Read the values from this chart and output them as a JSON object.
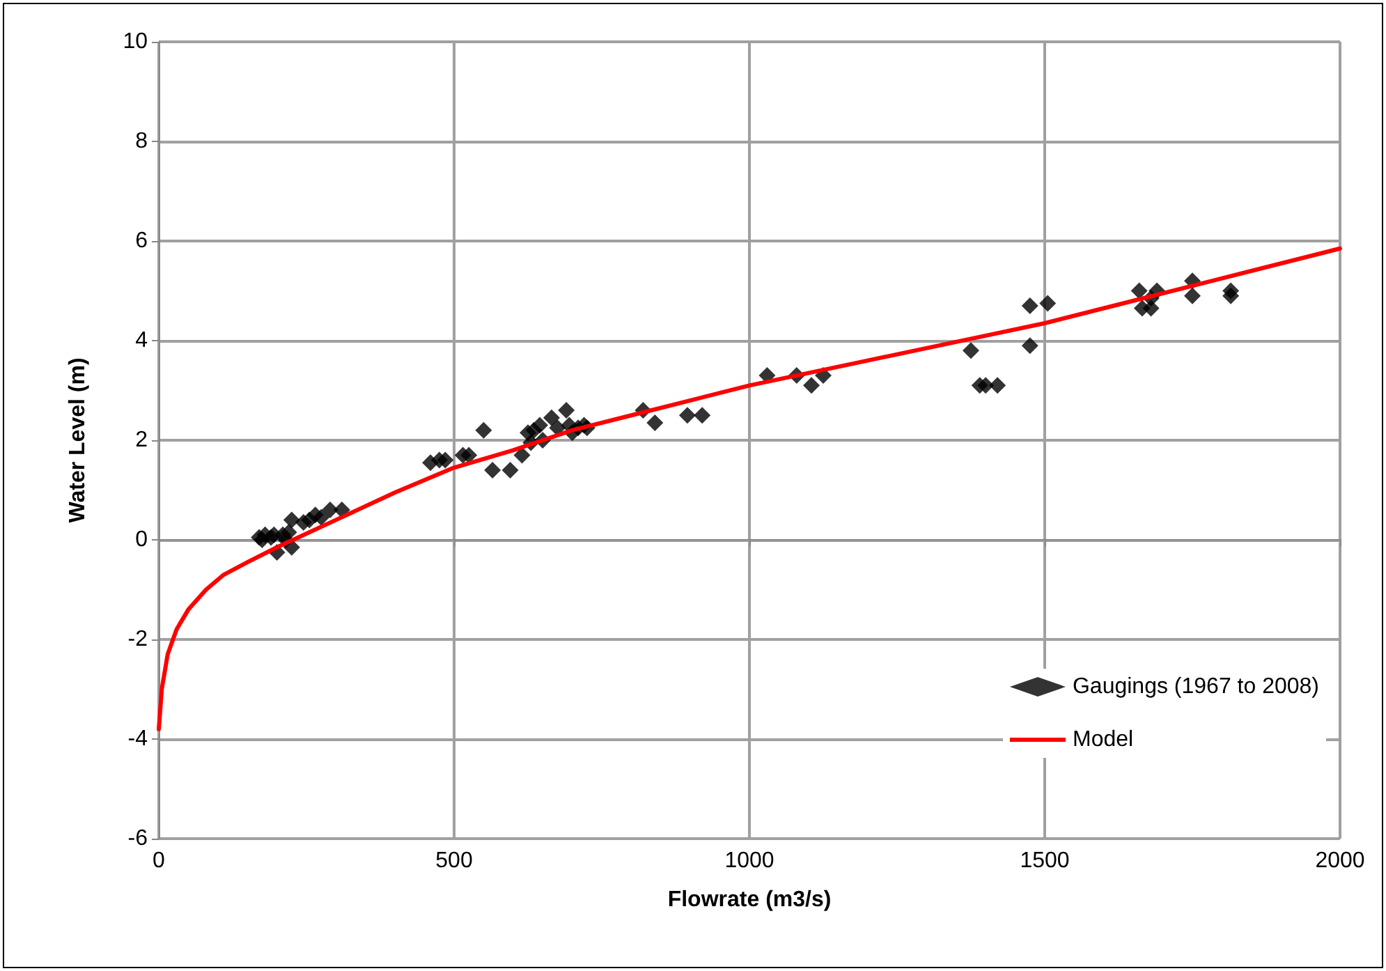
{
  "chart_data": {
    "type": "scatter",
    "xlabel": "Flowrate (m3/s)",
    "ylabel": "Water Level (m)",
    "xlim": [
      0,
      2000
    ],
    "xticks": [
      0,
      500,
      1000,
      1500,
      2000
    ],
    "ylim": [
      -6,
      10
    ],
    "yticks": [
      -6,
      -4,
      -2,
      0,
      2,
      4,
      6,
      8,
      10
    ],
    "grid": true,
    "legend": "bottom right",
    "series": [
      {
        "name": "Gaugings (1967 to 2008)",
        "marker": "diamond",
        "color": "#000000",
        "x": [
          170,
          175,
          180,
          190,
          195,
          200,
          210,
          215,
          220,
          225,
          225,
          245,
          255,
          265,
          275,
          290,
          310,
          460,
          475,
          485,
          515,
          525,
          550,
          565,
          595,
          615,
          625,
          630,
          635,
          645,
          650,
          665,
          675,
          690,
          695,
          700,
          710,
          720,
          725,
          820,
          840,
          895,
          920,
          1030,
          1080,
          1105,
          1125,
          1375,
          1390,
          1400,
          1420,
          1475,
          1475,
          1505,
          1660,
          1665,
          1680,
          1680,
          1690,
          1750,
          1750,
          1815,
          1815
        ],
        "values": [
          0.05,
          0,
          0.1,
          0.05,
          0.1,
          -0.25,
          0.1,
          0,
          0.15,
          -0.15,
          0.4,
          0.35,
          0.4,
          0.5,
          0.45,
          0.6,
          0.6,
          1.55,
          1.6,
          1.6,
          1.7,
          1.7,
          2.2,
          1.4,
          1.4,
          1.7,
          2.15,
          1.95,
          2.2,
          2.3,
          2.0,
          2.45,
          2.25,
          2.6,
          2.3,
          2.15,
          2.25,
          2.3,
          2.25,
          2.6,
          2.35,
          2.5,
          2.5,
          3.3,
          3.3,
          3.1,
          3.3,
          3.8,
          3.1,
          3.1,
          3.1,
          3.9,
          4.7,
          4.75,
          5.0,
          4.65,
          4.85,
          4.65,
          5.0,
          5.2,
          4.9,
          5.0,
          4.9
        ]
      },
      {
        "name": "Model",
        "type": "line",
        "marker": "none",
        "line_style": "solid",
        "color": "#ff0000",
        "x": [
          0,
          5,
          15,
          30,
          50,
          80,
          110,
          150,
          200,
          300,
          400,
          500,
          600,
          700,
          800,
          900,
          1000,
          1200,
          1400,
          1500,
          1600,
          1800,
          2000
        ],
        "values": [
          -3.8,
          -3,
          -2.3,
          -1.8,
          -1.4,
          -1.0,
          -0.7,
          -0.45,
          -0.15,
          0.4,
          0.95,
          1.45,
          1.8,
          2.2,
          2.5,
          2.8,
          3.1,
          3.6,
          4.1,
          4.35,
          4.65,
          5.25,
          5.85
        ]
      }
    ]
  }
}
